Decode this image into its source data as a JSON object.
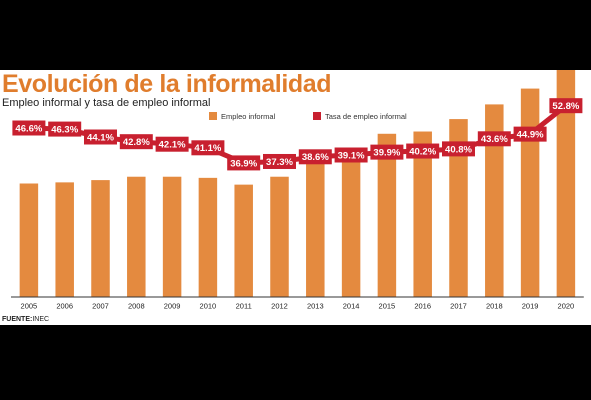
{
  "title": "Evolución de la informalidad",
  "subtitle": "Empleo informal y tasa de empleo informal",
  "source": {
    "label": "FUENTE:",
    "text": "INEC"
  },
  "colors": {
    "bar": "#e48a3f",
    "rate_box": "#c8202f",
    "title": "#e07d2d",
    "rate_text": "#ffffff"
  },
  "chart_data": {
    "type": "bar",
    "categories": [
      "2005",
      "2006",
      "2007",
      "2008",
      "2009",
      "2010",
      "2011",
      "2012",
      "2013",
      "2014",
      "2015",
      "2016",
      "2017",
      "2018",
      "2019",
      "2020"
    ],
    "series": [
      {
        "name": "Empleo informal",
        "type": "bar",
        "values": [
          1.0,
          1.01,
          1.03,
          1.06,
          1.06,
          1.05,
          0.99,
          1.06,
          1.22,
          1.29,
          1.44,
          1.46,
          1.57,
          1.7,
          1.84,
          2.22
        ]
      },
      {
        "name": "Tasa de empleo informal",
        "type": "label-box",
        "values": [
          46.6,
          46.3,
          44.1,
          42.8,
          42.1,
          41.1,
          36.9,
          37.3,
          38.6,
          39.1,
          39.9,
          40.2,
          40.8,
          43.6,
          44.9,
          52.8
        ],
        "labels": [
          "46.6%",
          "46.3%",
          "44.1%",
          "42.8%",
          "42.1%",
          "41.1%",
          "36.9%",
          "37.3%",
          "38.6%",
          "39.1%",
          "39.9%",
          "40.2%",
          "40.8%",
          "43.6%",
          "44.9%",
          "52.8%"
        ]
      }
    ],
    "legend": {
      "position": "top-center",
      "entries": [
        "Empleo informal",
        "Tasa de empleo informal"
      ]
    },
    "grid": false
  }
}
